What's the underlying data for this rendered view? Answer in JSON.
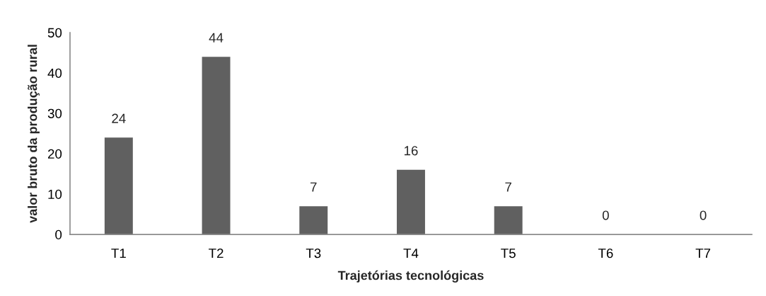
{
  "chart_data": {
    "type": "bar",
    "xlabel": "Trajetórias tecnológicas",
    "ylabel": "valor bruto da produção rural",
    "categories": [
      "T1",
      "T2",
      "T3",
      "T4",
      "T5",
      "T6",
      "T7"
    ],
    "values": [
      24,
      44,
      7,
      16,
      7,
      0,
      0
    ],
    "color": "#606060",
    "ylim": [
      0,
      50
    ],
    "yticks": [
      0,
      10,
      20,
      30,
      40,
      50
    ],
    "grid": false,
    "data_labels": true
  }
}
